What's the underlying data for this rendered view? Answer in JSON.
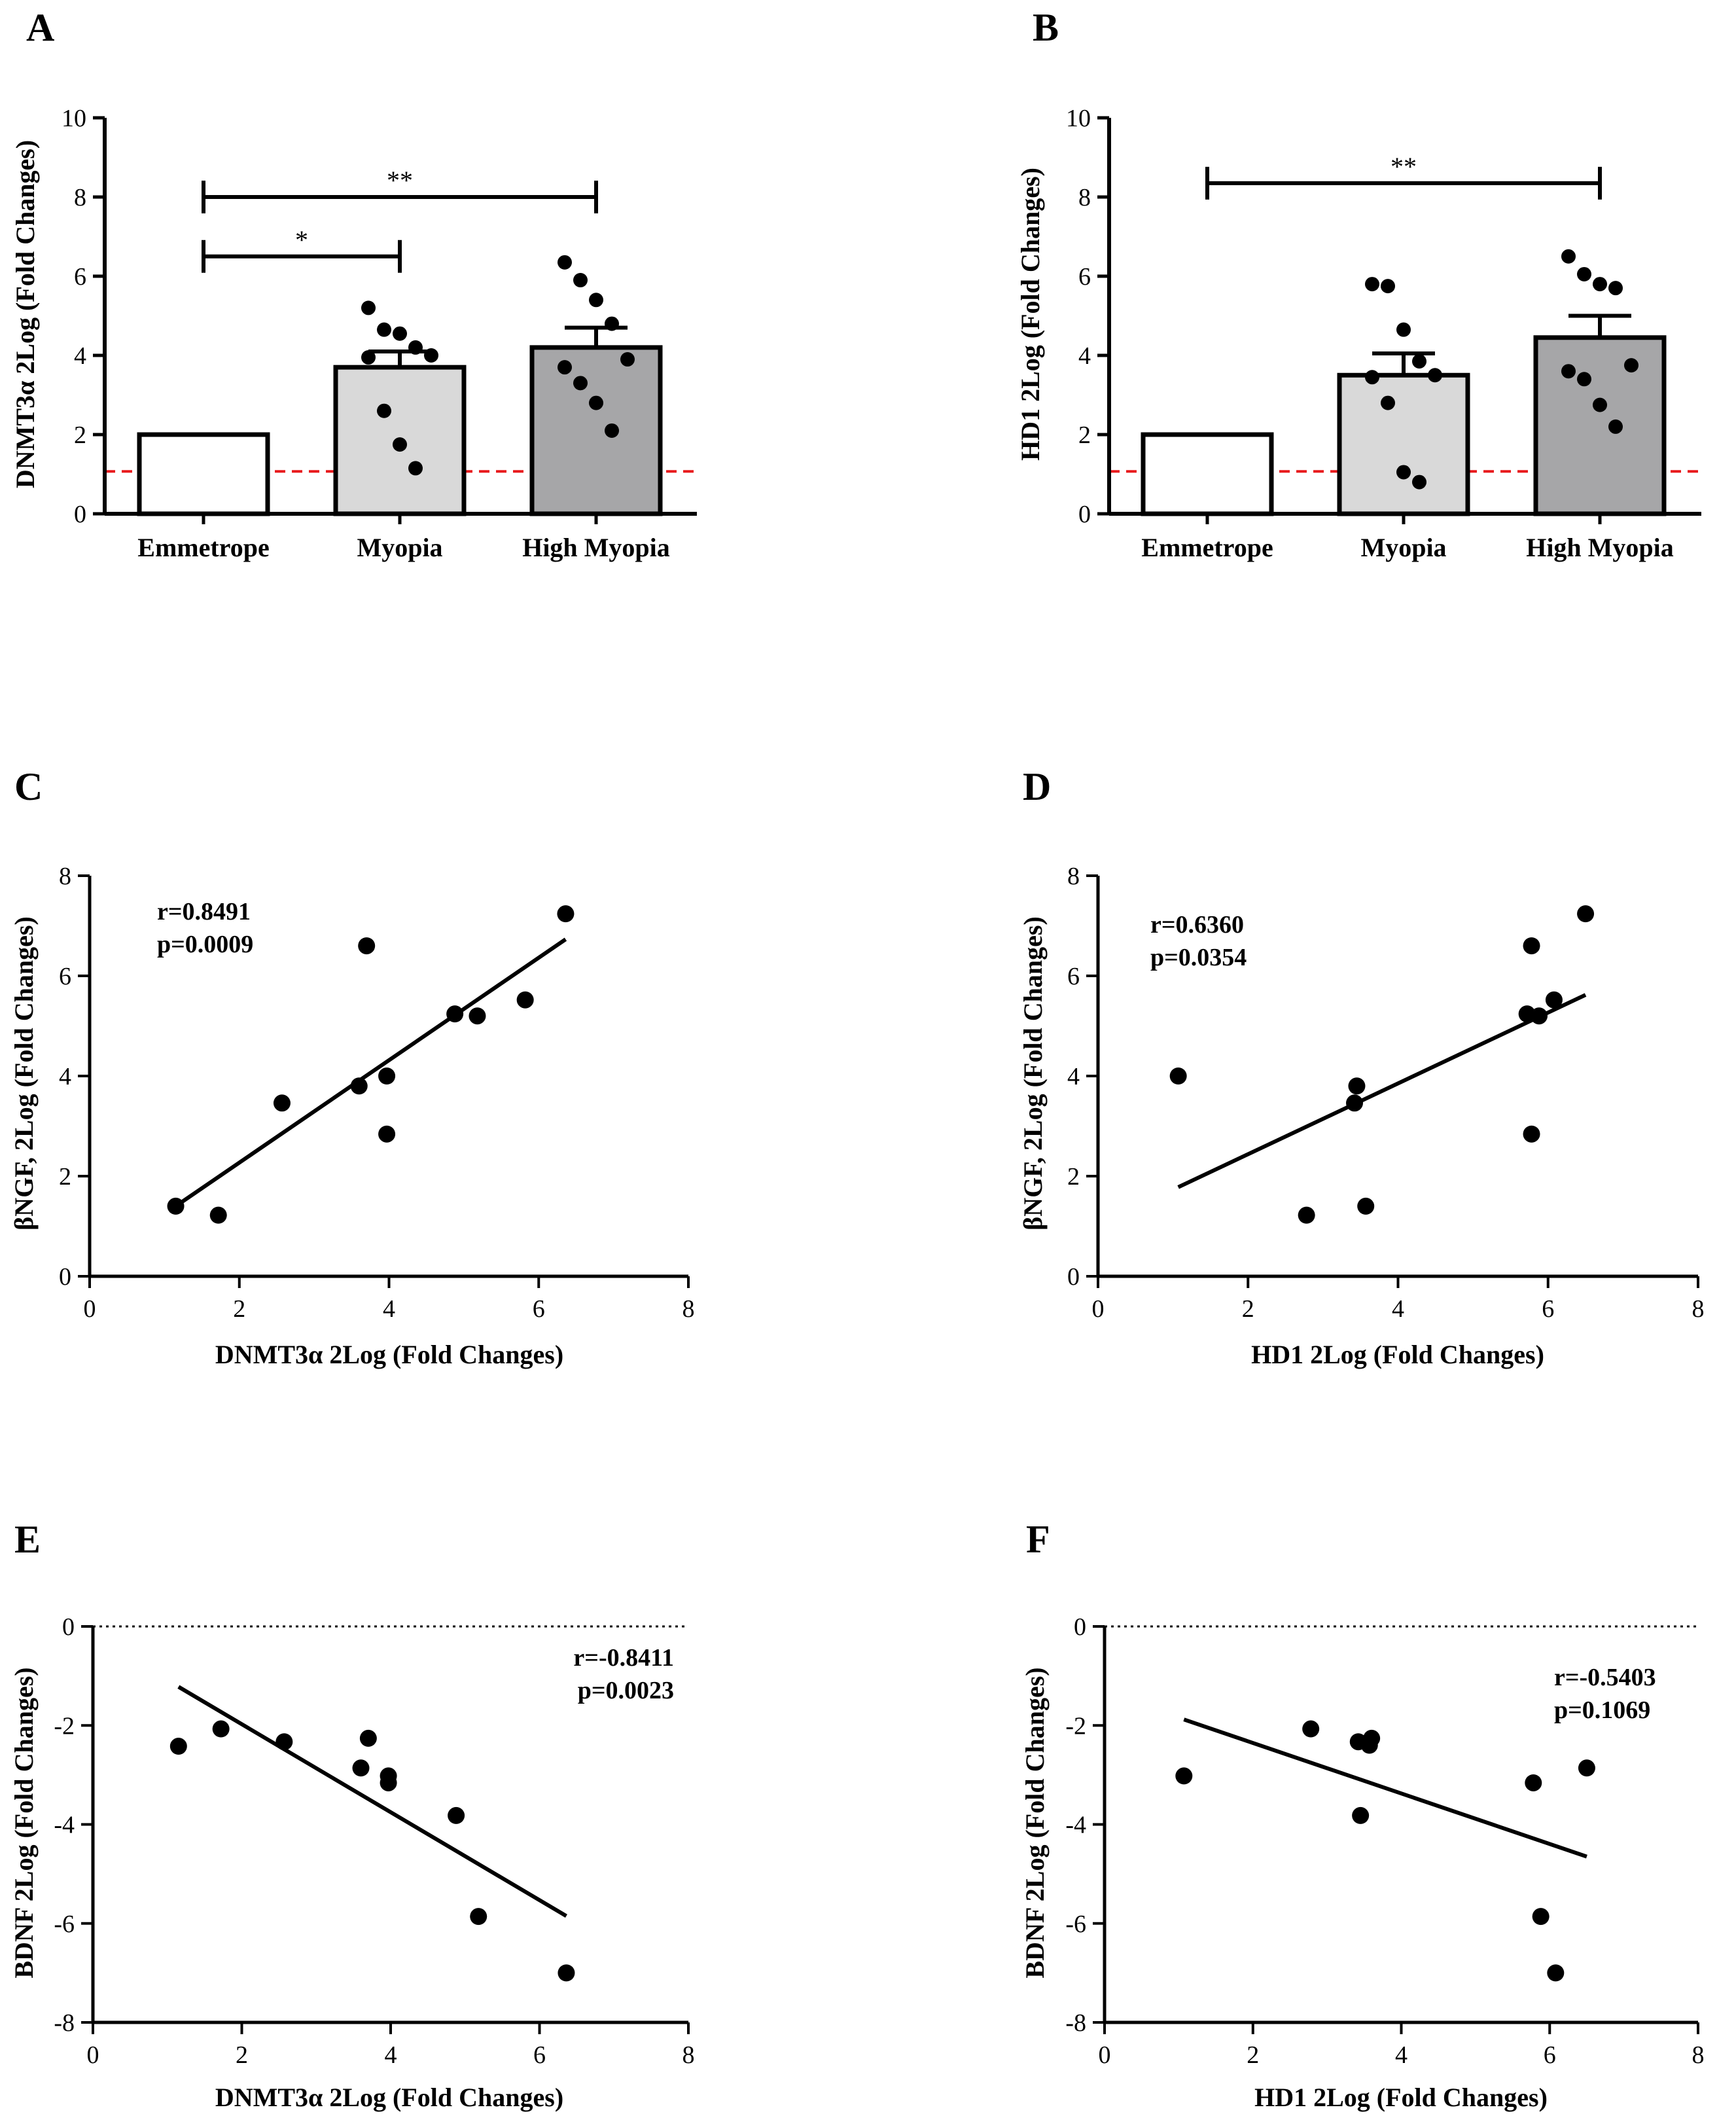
{
  "charts": [
    {
      "letter": "A",
      "type": "bar",
      "categories": [
        "Emmetrope",
        "Myopia",
        "High Myopia"
      ],
      "values": [
        2.0,
        3.7,
        4.2
      ],
      "errors": [
        0,
        0.4,
        0.5
      ],
      "fills": [
        "#ffffff",
        "#d9d9d9",
        "#a6a6a8"
      ],
      "points": [
        [],
        [
          5.2,
          4.65,
          4.55,
          4.2,
          4.0,
          3.95,
          2.6,
          1.75,
          1.15
        ],
        [
          6.35,
          5.9,
          5.4,
          4.8,
          3.9,
          3.7,
          3.3,
          2.8,
          2.1
        ]
      ],
      "ylabel": "DNMT3α 2Log (Fold Changes)",
      "ylim": [
        0,
        10
      ],
      "yticks": [
        "0",
        "2",
        "4",
        "6",
        "8",
        "10"
      ],
      "baseline": 1.07,
      "significance": [
        {
          "from": 0,
          "to": 1,
          "y": 6.5,
          "label": "*"
        },
        {
          "from": 0,
          "to": 2,
          "y": 8.0,
          "label": "**"
        }
      ]
    },
    {
      "letter": "B",
      "type": "bar",
      "categories": [
        "Emmetrope",
        "Myopia",
        "High Myopia"
      ],
      "values": [
        2.0,
        3.5,
        4.45
      ],
      "errors": [
        0,
        0.55,
        0.55
      ],
      "fills": [
        "#ffffff",
        "#d9d9d9",
        "#a6a6a8"
      ],
      "points": [
        [],
        [
          5.8,
          5.75,
          4.65,
          3.85,
          3.5,
          3.45,
          2.8,
          1.05,
          0.8
        ],
        [
          6.5,
          6.05,
          5.8,
          5.7,
          3.75,
          3.6,
          3.4,
          2.75,
          2.2
        ]
      ],
      "ylabel": "HD1 2Log (Fold Changes)",
      "ylim": [
        0,
        10
      ],
      "yticks": [
        "0",
        "2",
        "4",
        "6",
        "8",
        "10"
      ],
      "baseline": 1.07,
      "significance": [
        {
          "from": 0,
          "to": 2,
          "y": 8.35,
          "label": "**"
        }
      ]
    },
    {
      "letter": "C",
      "type": "scatter",
      "points": [
        [
          1.15,
          1.4
        ],
        [
          1.72,
          1.22
        ],
        [
          2.57,
          3.46
        ],
        [
          3.6,
          3.8
        ],
        [
          3.7,
          6.6
        ],
        [
          3.97,
          4.0
        ],
        [
          3.97,
          2.84
        ],
        [
          4.88,
          5.24
        ],
        [
          5.18,
          5.2
        ],
        [
          5.82,
          5.52
        ],
        [
          6.36,
          7.24
        ]
      ],
      "fit": [
        [
          1.15,
          1.4
        ],
        [
          6.36,
          6.73
        ]
      ],
      "xlim": [
        0,
        8
      ],
      "ylim": [
        0,
        8
      ],
      "xticks": [
        "0",
        "2",
        "4",
        "6",
        "8"
      ],
      "yticks": [
        "0",
        "2",
        "4",
        "6",
        "8"
      ],
      "xlabel": "DNMT3α 2Log (Fold Changes)",
      "ylabel": "βNGF, 2Log (Fold Changes)",
      "stats": [
        "r=0.8491",
        "p=0.0009"
      ]
    },
    {
      "letter": "D",
      "type": "scatter",
      "points": [
        [
          1.07,
          4.0
        ],
        [
          2.78,
          1.22
        ],
        [
          3.42,
          3.46
        ],
        [
          3.45,
          3.8
        ],
        [
          3.57,
          1.4
        ],
        [
          5.72,
          5.24
        ],
        [
          5.78,
          6.6
        ],
        [
          5.78,
          2.84
        ],
        [
          5.88,
          5.2
        ],
        [
          6.08,
          5.52
        ],
        [
          6.5,
          7.24
        ]
      ],
      "fit": [
        [
          1.07,
          1.78
        ],
        [
          6.5,
          5.62
        ]
      ],
      "xlim": [
        0,
        8
      ],
      "ylim": [
        0,
        8
      ],
      "xticks": [
        "0",
        "2",
        "4",
        "6",
        "8"
      ],
      "yticks": [
        "0",
        "2",
        "4",
        "6",
        "8"
      ],
      "xlabel": "HD1 2Log (Fold Changes)",
      "ylabel": "βNGF, 2Log (Fold Changes)",
      "stats": [
        "r=0.6360",
        "p=0.0354"
      ]
    },
    {
      "letter": "E",
      "type": "scatter",
      "points": [
        [
          1.15,
          -2.42
        ],
        [
          1.72,
          -2.07
        ],
        [
          2.57,
          -2.33
        ],
        [
          3.6,
          -2.86
        ],
        [
          3.7,
          -2.26
        ],
        [
          3.97,
          -3.02
        ],
        [
          3.97,
          -3.16
        ],
        [
          4.88,
          -3.82
        ],
        [
          5.18,
          -5.86
        ],
        [
          6.36,
          -7.0
        ]
      ],
      "fit": [
        [
          1.15,
          -1.22
        ],
        [
          6.36,
          -5.85
        ]
      ],
      "xlim": [
        0,
        8
      ],
      "ylim": [
        -8,
        0
      ],
      "xticks": [
        "0",
        "2",
        "4",
        "6",
        "8"
      ],
      "yticks": [
        "-8",
        "-6",
        "-4",
        "-2",
        "0"
      ],
      "xlabel": "DNMT3α 2Log (Fold Changes)",
      "ylabel": "BDNF 2Log (Fold Changes)",
      "stats": [
        "r=-0.8411",
        "p=0.0023"
      ]
    },
    {
      "letter": "F",
      "type": "scatter",
      "points": [
        [
          1.07,
          -3.02
        ],
        [
          2.78,
          -2.07
        ],
        [
          3.42,
          -2.33
        ],
        [
          3.45,
          -3.82
        ],
        [
          3.57,
          -2.4
        ],
        [
          3.6,
          -2.26
        ],
        [
          5.78,
          -3.16
        ],
        [
          5.88,
          -5.86
        ],
        [
          6.08,
          -7.0
        ],
        [
          6.5,
          -2.86
        ]
      ],
      "fit": [
        [
          1.07,
          -1.88
        ],
        [
          6.5,
          -4.65
        ]
      ],
      "xlim": [
        0,
        8
      ],
      "ylim": [
        -8,
        0
      ],
      "xticks": [
        "0",
        "2",
        "4",
        "6",
        "8"
      ],
      "yticks": [
        "-8",
        "-6",
        "-4",
        "-2",
        "0"
      ],
      "xlabel": "HD1 2Log (Fold Changes)",
      "ylabel": "BDNF 2Log (Fold Changes)",
      "stats": [
        "r=-0.5403",
        "p=0.1069"
      ]
    }
  ],
  "chart_data": [
    {
      "panel": "A",
      "type": "bar",
      "categories": [
        "Emmetrope",
        "Myopia",
        "High Myopia"
      ],
      "values": [
        2.0,
        3.7,
        4.2
      ],
      "ylabel": "DNMT3α 2Log (Fold Changes)",
      "ylim": [
        0,
        10
      ]
    },
    {
      "panel": "B",
      "type": "bar",
      "categories": [
        "Emmetrope",
        "Myopia",
        "High Myopia"
      ],
      "values": [
        2.0,
        3.5,
        4.45
      ],
      "ylabel": "HD1 2Log (Fold Changes)",
      "ylim": [
        0,
        10
      ]
    },
    {
      "panel": "C",
      "type": "scatter",
      "xlabel": "DNMT3α 2Log (Fold Changes)",
      "ylabel": "βNGF, 2Log (Fold Changes)",
      "xlim": [
        0,
        8
      ],
      "ylim": [
        0,
        8
      ]
    },
    {
      "panel": "D",
      "type": "scatter",
      "xlabel": "HD1 2Log (Fold Changes)",
      "ylabel": "βNGF, 2Log (Fold Changes)",
      "xlim": [
        0,
        8
      ],
      "ylim": [
        0,
        8
      ]
    },
    {
      "panel": "E",
      "type": "scatter",
      "xlabel": "DNMT3α 2Log (Fold Changes)",
      "ylabel": "BDNF 2Log (Fold Changes)",
      "xlim": [
        0,
        8
      ],
      "ylim": [
        -8,
        0
      ]
    },
    {
      "panel": "F",
      "type": "scatter",
      "xlabel": "HD1 2Log (Fold Changes)",
      "ylabel": "BDNF 2Log (Fold Changes)",
      "xlim": [
        0,
        8
      ],
      "ylim": [
        -8,
        0
      ]
    }
  ]
}
